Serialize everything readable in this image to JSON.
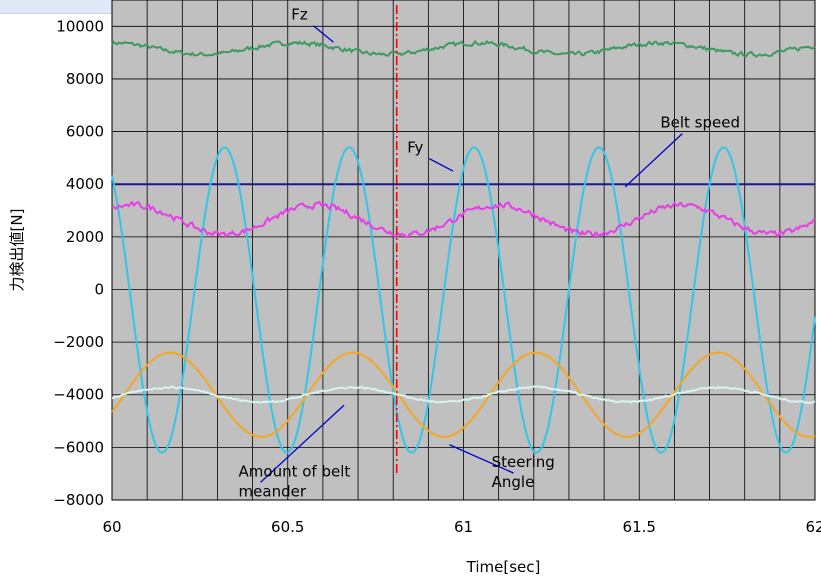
{
  "chart_data": {
    "type": "line",
    "title": "",
    "xlabel": "Time[sec]",
    "ylabel": "力検出値[N]",
    "xlim": [
      60,
      62
    ],
    "ylim": [
      -8000,
      11000
    ],
    "x_ticks": [
      60,
      60.5,
      61,
      61.5,
      62
    ],
    "x_tick_labels": [
      "60",
      "60.5",
      "61",
      "61.5",
      "62"
    ],
    "y_ticks": [
      -8000,
      -6000,
      -4000,
      -2000,
      0,
      2000,
      4000,
      6000,
      8000,
      10000
    ],
    "y_tick_labels": [
      "−8000",
      "−6000",
      "−4000",
      "−2000",
      "0",
      "2000",
      "4000",
      "6000",
      "8000",
      "10000"
    ],
    "grid": true,
    "x_grid_step": 0.1,
    "y_grid_step": 2000,
    "plot_background": "#c0c0c0",
    "marker_line": {
      "x": 60.81,
      "color": "#ff0000",
      "style": "dash-dot"
    },
    "series": [
      {
        "key": "fz",
        "color": "#3c9a5f",
        "mean": 9150,
        "amplitude": 220,
        "period": 0.52,
        "phase": 0.0,
        "noise": 90
      },
      {
        "key": "belt_speed",
        "color": "#1a1a8c",
        "mean": 4000,
        "amplitude": 0,
        "period": 1,
        "phase": 0,
        "noise": 0
      },
      {
        "key": "fy",
        "color": "#33c6e8",
        "mean": -400,
        "amplitude": 5800,
        "period": 0.355,
        "phase": 0.32,
        "noise": 0
      },
      {
        "key": "magenta",
        "color": "#e83ce8",
        "mean": 2650,
        "amplitude": 550,
        "period": 0.52,
        "phase": 0.06,
        "noise": 120
      },
      {
        "key": "meander",
        "color": "#f5a623",
        "mean": -4000,
        "amplitude": 1600,
        "period": 0.52,
        "phase": 0.165,
        "noise": 0
      },
      {
        "key": "steering",
        "color": "#d8f4f0",
        "mean": -4000,
        "amplitude": 280,
        "period": 0.52,
        "phase": 0.165,
        "noise": 40
      }
    ],
    "annotations": [
      {
        "name": "fz-label",
        "text": "Fz",
        "label_x": 60.51,
        "label_y": 10250,
        "tip_x": 60.63,
        "tip_y": 9400
      },
      {
        "name": "belt-speed-label",
        "text": "Belt speed",
        "label_x": 61.56,
        "label_y": 6150,
        "tip_x": 61.46,
        "tip_y": 3900
      },
      {
        "name": "fy-label",
        "text": "Fy",
        "label_x": 60.84,
        "label_y": 5200,
        "tip_x": 60.97,
        "tip_y": 4500
      },
      {
        "name": "meander-label",
        "text": "Amount of belt\nmeander",
        "label_x": 60.36,
        "label_y": -7100,
        "tip_x": 60.66,
        "tip_y": -4400
      },
      {
        "name": "steering-label",
        "text": "Steering\nAngle",
        "label_x": 61.08,
        "label_y": -6750,
        "tip_x": 60.96,
        "tip_y": -5900
      }
    ]
  }
}
